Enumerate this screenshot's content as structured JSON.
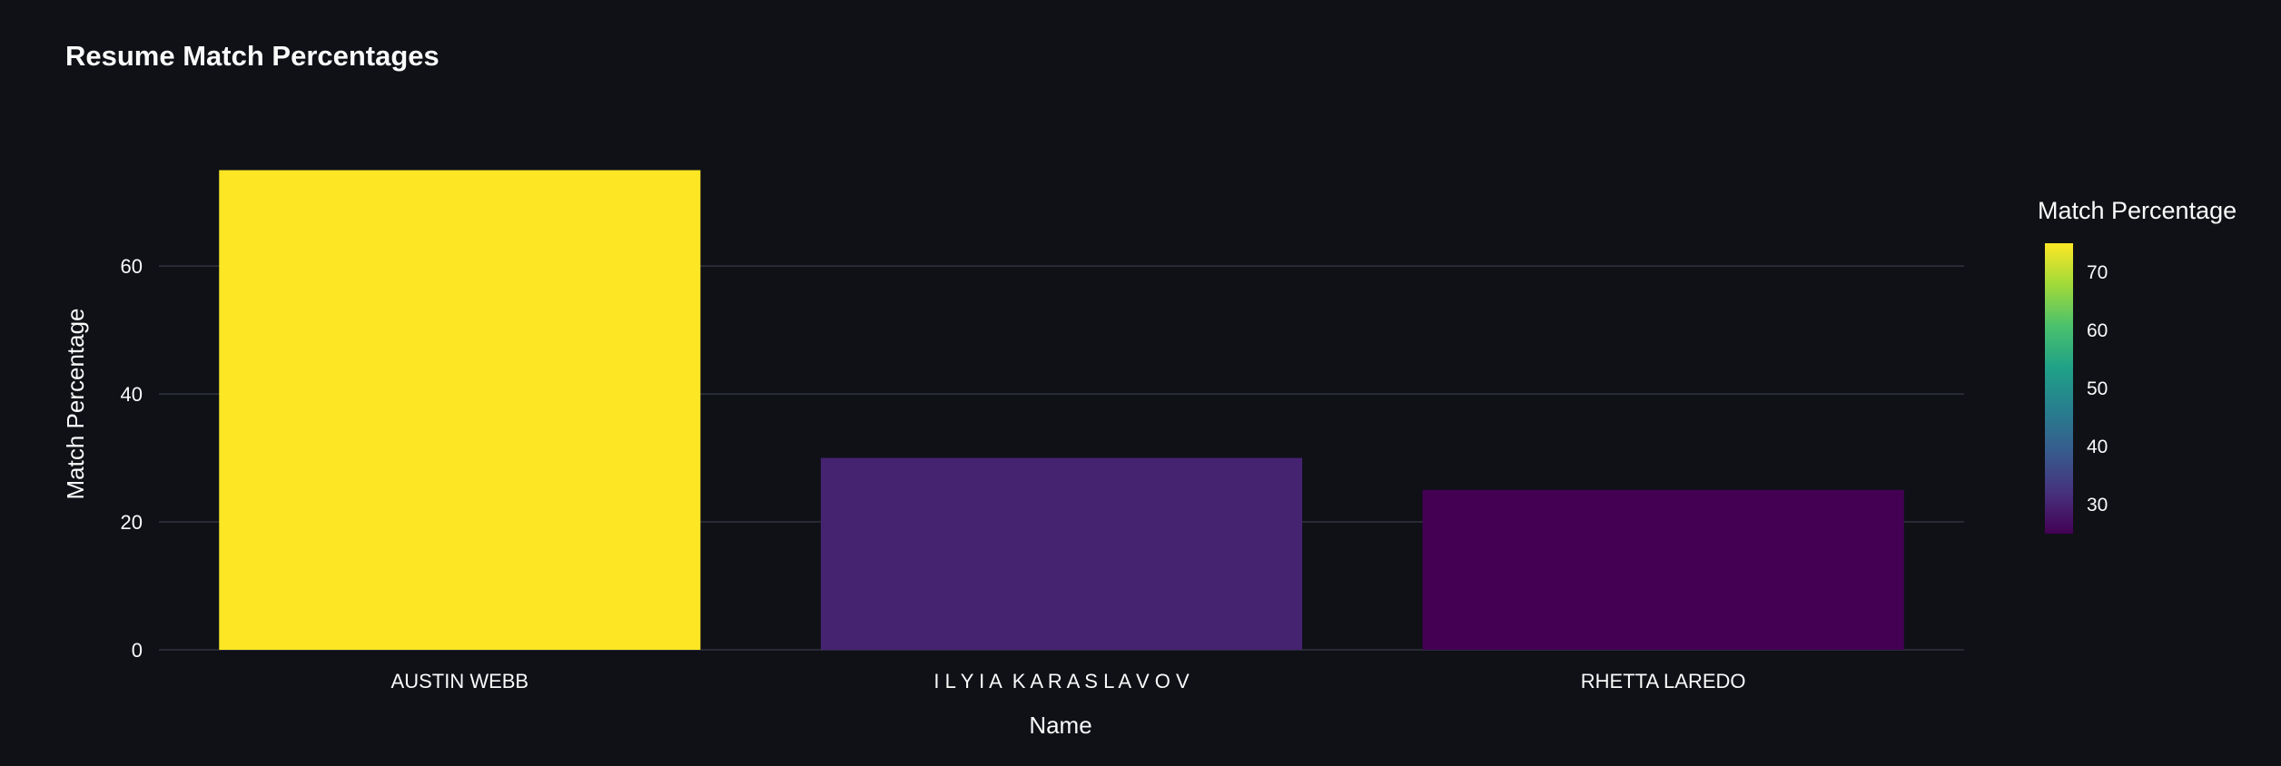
{
  "chart_data": {
    "type": "bar",
    "title": "Resume Match Percentages",
    "xlabel": "Name",
    "ylabel": "Match Percentage",
    "categories": [
      "AUSTIN WEBB",
      "I L Y I A  K A R A S L A V O V",
      "RHETTA LAREDO"
    ],
    "values": [
      75,
      30,
      25
    ],
    "ylim": [
      0,
      78.9
    ],
    "yticks": [
      0,
      20,
      40,
      60
    ],
    "grid": true,
    "colorscale": {
      "title": "Match Percentage",
      "min": 25,
      "max": 75,
      "ticks": [
        30,
        40,
        50,
        60,
        70
      ],
      "stops": [
        "#440154",
        "#46327e",
        "#365c8d",
        "#277f8e",
        "#1fa187",
        "#4ac16d",
        "#a0da39",
        "#fde725"
      ]
    },
    "legend_position": "right"
  },
  "colors": {
    "background": "#0f1117",
    "text": "#fafafa",
    "grid": "#31333f"
  }
}
